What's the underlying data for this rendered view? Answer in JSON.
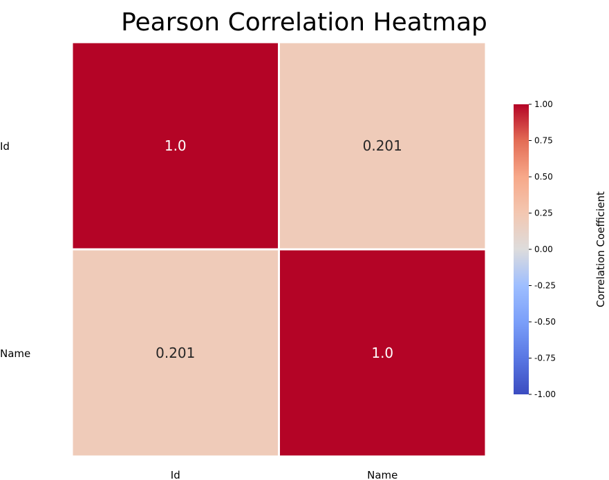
{
  "chart_data": {
    "type": "heatmap",
    "title": "Pearson Correlation Heatmap",
    "x_categories": [
      "Id",
      "Name"
    ],
    "y_categories": [
      "Id",
      "Name"
    ],
    "matrix": [
      [
        1.0,
        0.201
      ],
      [
        0.201,
        1.0
      ]
    ],
    "cell_labels": [
      [
        "1.0",
        "0.201"
      ],
      [
        "0.201",
        "1.0"
      ]
    ],
    "colorbar": {
      "label": "Correlation Coefficient",
      "range": [
        -1.0,
        1.0
      ],
      "ticks": [
        "1.00",
        "0.75",
        "0.50",
        "0.25",
        "0.00",
        "-0.25",
        "-0.50",
        "-0.75",
        "-1.00"
      ],
      "tick_values": [
        1.0,
        0.75,
        0.5,
        0.25,
        0.0,
        -0.25,
        -0.5,
        -0.75,
        -1.0
      ]
    },
    "colormap": "coolwarm",
    "colors": {
      "high": "#b40426",
      "mid": "#dddddd",
      "low": "#3b4cc0",
      "cell_border": "#ffffff"
    }
  }
}
